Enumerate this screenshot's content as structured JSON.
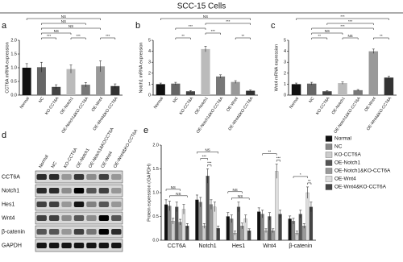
{
  "title": "SCC-15 Cells",
  "chart_data": [
    {
      "type": "bar",
      "panel": "a",
      "ylabel": "CCT6A mRNA expression",
      "categories": [
        "Normal",
        "NC",
        "KO-CCT6A",
        "OE-Notch1",
        "OE-Notch1&KO-CCT6A",
        "OE-Wnt4",
        "OE-Wnt4&KO-CCT6A"
      ],
      "values": [
        1,
        1.02,
        0.3,
        0.95,
        0.38,
        1.05,
        0.33
      ],
      "errors": [
        0.15,
        0.18,
        0.08,
        0.15,
        0.08,
        0.2,
        0.08
      ],
      "colors": [
        "#111111",
        "#666666",
        "#444444",
        "#bbbbbb",
        "#777777",
        "#999999",
        "#333333"
      ],
      "ylim": [
        0,
        2
      ],
      "yticks": [
        {
          "value": 0,
          "label": "0.0"
        },
        0.5,
        {
          "value": 1,
          "label": "1.0"
        },
        1.5,
        {
          "value": 2,
          "label": "2.0"
        }
      ],
      "annotations": [
        "***",
        "***",
        "***",
        "NS",
        "NS",
        "NS",
        "NS"
      ]
    },
    {
      "type": "bar",
      "panel": "b",
      "ylabel": "Notch1 mRNA expression",
      "categories": [
        "Normal",
        "NC",
        "KO-CCT6A",
        "OE-Notch1",
        "OE-Notch1&KO-CCT6A",
        "OE-Wnt4",
        "OE-Wnt4&KO-CCT6A"
      ],
      "values": [
        1,
        1.05,
        0.35,
        4.2,
        1.7,
        1.2,
        0.4
      ],
      "errors": [
        0.1,
        0.12,
        0.06,
        0.25,
        0.15,
        0.12,
        0.06
      ],
      "colors": [
        "#111111",
        "#666666",
        "#444444",
        "#bbbbbb",
        "#777777",
        "#999999",
        "#333333"
      ],
      "ylim": [
        0,
        5
      ],
      "yticks": [
        0,
        1,
        2,
        3,
        4,
        5
      ],
      "annotations": [
        "**",
        "***",
        "**",
        "***",
        "***",
        "NS"
      ]
    },
    {
      "type": "bar",
      "panel": "c",
      "ylabel": "Wnt4 mRNA expression",
      "categories": [
        "Normal",
        "NC",
        "KO-CCT6A",
        "OE-Notch1",
        "OE-Notch1&KO-CCT6A",
        "OE-Wnt4",
        "OE-Wnt4&KO-CCT6A"
      ],
      "values": [
        1,
        1.05,
        0.35,
        1.1,
        0.45,
        4,
        1.6
      ],
      "errors": [
        0.1,
        0.12,
        0.06,
        0.1,
        0.06,
        0.2,
        0.12
      ],
      "colors": [
        "#111111",
        "#666666",
        "#444444",
        "#bbbbbb",
        "#777777",
        "#999999",
        "#333333"
      ],
      "ylim": [
        0,
        5
      ],
      "yticks": [
        0,
        1,
        2,
        3,
        4,
        5
      ],
      "annotations": [
        "**",
        "NS",
        "NS",
        "**",
        "***",
        "***",
        "***"
      ]
    },
    {
      "type": "grouped_bar",
      "panel": "e",
      "ylabel": "Protein expression (/GAPDH)",
      "categories": [
        "CCT6A",
        "Notch1",
        "Hes1",
        "Wnt4",
        "β-catenin"
      ],
      "series": [
        {
          "name": "Normal",
          "color": "#111111",
          "values": [
            0.75,
            0.85,
            0.5,
            0.6,
            0.45
          ],
          "errors": [
            0.1,
            0.1,
            0.08,
            0.08,
            0.06
          ]
        },
        {
          "name": "NC",
          "color": "#888888",
          "values": [
            0.72,
            0.8,
            0.45,
            0.55,
            0.4
          ],
          "errors": [
            0.1,
            0.1,
            0.08,
            0.08,
            0.06
          ]
        },
        {
          "name": "KO-CCT6A",
          "color": "#cccccc",
          "values": [
            0.4,
            0.3,
            0.15,
            0.2,
            0.15
          ],
          "errors": [
            0.06,
            0.05,
            0.04,
            0.04,
            0.04
          ]
        },
        {
          "name": "OE-Notch1",
          "color": "#555555",
          "values": [
            0.7,
            1.35,
            0.7,
            0.5,
            0.55
          ],
          "errors": [
            0.1,
            0.15,
            0.1,
            0.08,
            0.08
          ]
        },
        {
          "name": "OE-Notch1&KO-CCT6A",
          "color": "#999999",
          "values": [
            0.38,
            0.75,
            0.3,
            0.2,
            0.3
          ],
          "errors": [
            0.06,
            0.1,
            0.06,
            0.04,
            0.05
          ]
        },
        {
          "name": "OE-Wnt4",
          "color": "#dddddd",
          "values": [
            0.65,
            0.7,
            0.45,
            1.45,
            1
          ],
          "errors": [
            0.1,
            0.1,
            0.08,
            0.15,
            0.12
          ]
        },
        {
          "name": "OE-Wnt4&KO-CCT6A",
          "color": "#444444",
          "values": [
            0.3,
            0.25,
            0.2,
            0.55,
            0.7
          ],
          "errors": [
            0.05,
            0.05,
            0.04,
            0.08,
            0.1
          ]
        }
      ],
      "ylim": [
        0,
        2
      ],
      "yticks": [
        {
          "value": 0,
          "label": "0.0"
        },
        0.5,
        {
          "value": 1,
          "label": "1.0"
        },
        1.5,
        {
          "value": 2,
          "label": "2.0"
        }
      ],
      "legend": "upper right",
      "annotations": [
        "NS",
        "NS",
        "NS",
        "***",
        "***",
        "NS",
        "NS",
        "**",
        "***",
        "*",
        "**"
      ]
    }
  ],
  "blot": {
    "panel": "d",
    "lanes": [
      "Normal",
      "NC",
      "KO-CCT6A",
      "OE-Notch1",
      "OE-Notch1&KOCCT6A",
      "OE-Wnt4",
      "OE-Wnt4&KO-CCT6A"
    ],
    "proteins": [
      "CCT6A",
      "Notch1",
      "Hes1",
      "Wnt4",
      "β-catenin",
      "GAPDH"
    ]
  }
}
